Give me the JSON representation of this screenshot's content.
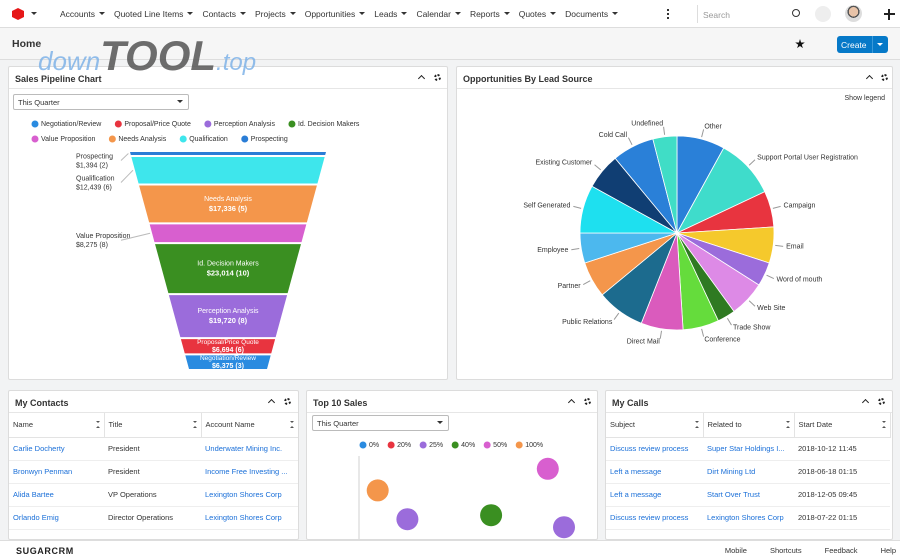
{
  "watermark": [
    "down",
    "TOOL",
    ".top"
  ],
  "nav": {
    "items": [
      "Accounts",
      "Quoted Line Items",
      "Contacts",
      "Projects",
      "Opportunities",
      "Leads",
      "Calendar",
      "Reports",
      "Quotes",
      "Documents"
    ],
    "search_placeholder": "Search"
  },
  "header": {
    "title": "Home",
    "create": "Create"
  },
  "sales_pipeline": {
    "title": "Sales Pipeline Chart",
    "filter": "This Quarter",
    "chart_data": {
      "type": "funnel",
      "categories": [
        "Negotiation/Review",
        "Proposal/Price Quote",
        "Perception Analysis",
        "Id. Decision Makers",
        "Value Proposition",
        "Needs Analysis",
        "Qualification",
        "Prospecting"
      ],
      "values": [
        6375,
        6694,
        19720,
        23014,
        8275,
        17336,
        12439,
        1394
      ],
      "counts": [
        3,
        6,
        8,
        10,
        8,
        5,
        6,
        2
      ],
      "value_labels": [
        "$6,375 (3)",
        "$6,694 (6)",
        "$19,720 (8)",
        "$23,014 (10)",
        "$8,275 (8)",
        "$17,336 (5)",
        "$12,439 (6)",
        "$1,394 (2)"
      ],
      "colors": [
        "#2a8be0",
        "#e8343f",
        "#9b6cdb",
        "#3a8f21",
        "#d85fcf",
        "#f4964b",
        "#3ee6ec",
        "#2a7dd6"
      ]
    }
  },
  "lead_source": {
    "title": "Opportunities By Lead Source",
    "legend_toggle": "Show legend",
    "chart_data": {
      "type": "pie",
      "categories": [
        "Other",
        "Support Portal User Registration",
        "Campaign",
        "Email",
        "Word of mouth",
        "Web Site",
        "Trade Show",
        "Conference",
        "Direct Mail",
        "Public Relations",
        "Partner",
        "Employee",
        "Self Generated",
        "Existing Customer",
        "Cold Call",
        "Undefined"
      ],
      "values": [
        8,
        10,
        6,
        6,
        4,
        6,
        3,
        6,
        7,
        8,
        6,
        5,
        8,
        6,
        7,
        4
      ],
      "colors": [
        "#2a80d8",
        "#3fdccb",
        "#e8343f",
        "#f5c92c",
        "#9b6cdb",
        "#dd8ae6",
        "#2f7a22",
        "#65dc3c",
        "#da5bbd",
        "#1c6b8e",
        "#f4964b",
        "#4cb8ee",
        "#1ee0ef",
        "#103e73",
        "#2a80d8",
        "#40ddc6"
      ]
    }
  },
  "top_sales": {
    "title": "Top 10 Sales",
    "filter": "This Quarter",
    "chart_data": {
      "type": "scatter",
      "xlim": [
        0,
        100
      ],
      "ylim": [
        0,
        100
      ],
      "series": [
        {
          "name": "0%",
          "color": "#2a8be0",
          "x": [],
          "values": []
        },
        {
          "name": "20%",
          "color": "#e8343f",
          "x": [],
          "values": []
        },
        {
          "name": "25%",
          "color": "#9b6cdb",
          "x": [
            32,
            90
          ],
          "values": [
            21,
            11
          ]
        },
        {
          "name": "40%",
          "color": "#3a8f21",
          "x": [
            63
          ],
          "values": [
            26
          ]
        },
        {
          "name": "50%",
          "color": "#d85fcf",
          "x": [
            84
          ],
          "values": [
            84
          ]
        },
        {
          "name": "100%",
          "color": "#f4964b",
          "x": [
            21
          ],
          "values": [
            57
          ]
        }
      ]
    }
  },
  "my_contacts": {
    "title": "My Contacts",
    "columns": [
      "Name",
      "Title",
      "Account Name"
    ],
    "links": [
      true,
      false,
      true
    ],
    "rows": [
      [
        "Carlie Docherty",
        "President",
        "Underwater Mining Inc."
      ],
      [
        "Bronwyn Penman",
        "President",
        "Income Free Investing ..."
      ],
      [
        "Alida Bartee",
        "VP Operations",
        "Lexington Shores Corp"
      ],
      [
        "Orlando Emig",
        "Director Operations",
        "Lexington Shores Corp"
      ]
    ]
  },
  "my_calls": {
    "title": "My Calls",
    "columns": [
      "Subject",
      "Related to",
      "Start Date"
    ],
    "links": [
      true,
      true,
      false
    ],
    "rows": [
      [
        "Discuss review process",
        "Super Star Holdings I...",
        "2018-10-12 11:45"
      ],
      [
        "Left a message",
        "Dirt Mining Ltd",
        "2018-06-18 01:15"
      ],
      [
        "Left a message",
        "Start Over Trust",
        "2018-12-05 09:45"
      ],
      [
        "Discuss review process",
        "Lexington Shores Corp",
        "2018-07-22 01:15"
      ]
    ]
  },
  "footer": {
    "logo": "SUGARCRM",
    "links": [
      "Mobile",
      "Shortcuts",
      "Feedback",
      "Help"
    ]
  }
}
